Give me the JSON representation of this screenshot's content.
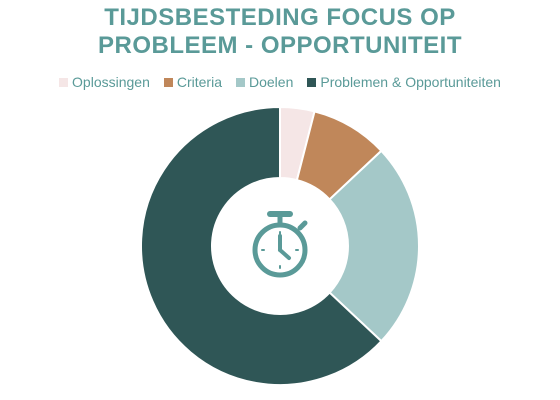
{
  "chart_data": {
    "type": "pie",
    "variant": "donut",
    "title_lines": [
      "TIJDSBESTEDING FOCUS OP",
      "PROBLEEM - OPPORTUNITEIT"
    ],
    "categories": [
      "Oplossingen",
      "Criteria",
      "Doelen",
      "Problemen & Opportuniteiten"
    ],
    "values": [
      4,
      9,
      24,
      63
    ],
    "colors": [
      "#f5e6e6",
      "#c0875a",
      "#a4c8c8",
      "#2f5656"
    ],
    "slice_order": "clockwise from top",
    "legend_position": "top",
    "center_icon": "stopwatch-icon"
  },
  "colors": {
    "title": "#5a9a98",
    "legend_text": "#5a9a98",
    "icon": "#5a9a98"
  }
}
